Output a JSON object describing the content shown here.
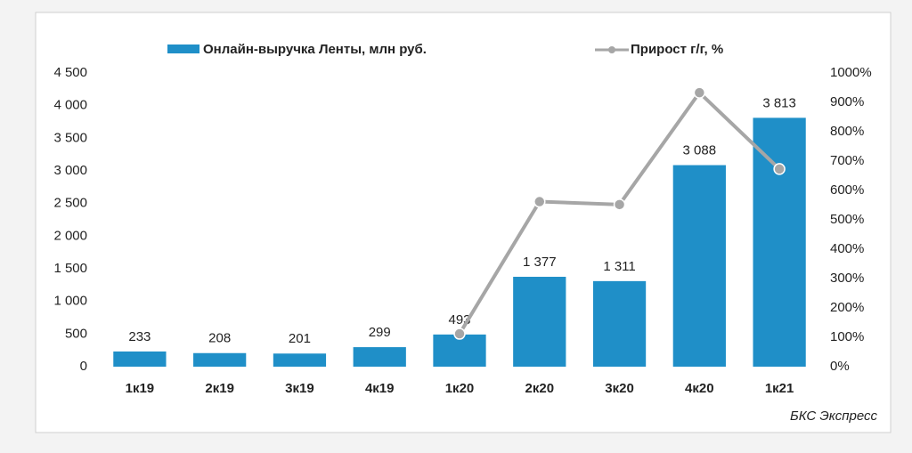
{
  "chart_data": {
    "type": "bar",
    "categories": [
      "1к19",
      "2к19",
      "3к19",
      "4к19",
      "1к20",
      "2к20",
      "3к20",
      "4к20",
      "1к21"
    ],
    "series": [
      {
        "name": "Онлайн-выручка Ленты, млн руб.",
        "color": "#1f8fc8",
        "type": "bar",
        "values": [
          233,
          208,
          201,
          299,
          493,
          1377,
          1311,
          3088,
          3813
        ],
        "value_labels": [
          "233",
          "208",
          "201",
          "299",
          "493",
          "1 377",
          "1 311",
          "3 088",
          "3 813"
        ]
      },
      {
        "name": "Прирост г/г, %",
        "color": "#a6a6a6",
        "type": "line",
        "axis": "y2",
        "values": [
          null,
          null,
          null,
          null,
          112,
          562,
          552,
          933,
          673
        ]
      }
    ],
    "ylim": [
      0,
      4500
    ],
    "yticks": [
      0,
      500,
      {
        "value": 1000,
        "label": "1 000"
      },
      {
        "value": 1500,
        "label": "1 500"
      },
      {
        "value": 2000,
        "label": "2 000"
      },
      {
        "value": 2500,
        "label": "2 500"
      },
      {
        "value": 3000,
        "label": "3 000"
      },
      {
        "value": 3500,
        "label": "3 500"
      },
      {
        "value": 4000,
        "label": "4 000"
      },
      {
        "value": 4500,
        "label": "4 500"
      }
    ],
    "y2lim": [
      0,
      1000
    ],
    "y2ticks": [
      {
        "value": 0,
        "label": "0%"
      },
      {
        "value": 100,
        "label": "100%"
      },
      {
        "value": 200,
        "label": "200%"
      },
      {
        "value": 300,
        "label": "300%"
      },
      {
        "value": 400,
        "label": "400%"
      },
      {
        "value": 500,
        "label": "500%"
      },
      {
        "value": 600,
        "label": "600%"
      },
      {
        "value": 700,
        "label": "700%"
      },
      {
        "value": 800,
        "label": "800%"
      },
      {
        "value": 900,
        "label": "900%"
      },
      {
        "value": 1000,
        "label": "1000%"
      }
    ],
    "source": "БКС Экспресс",
    "legend": "top"
  }
}
